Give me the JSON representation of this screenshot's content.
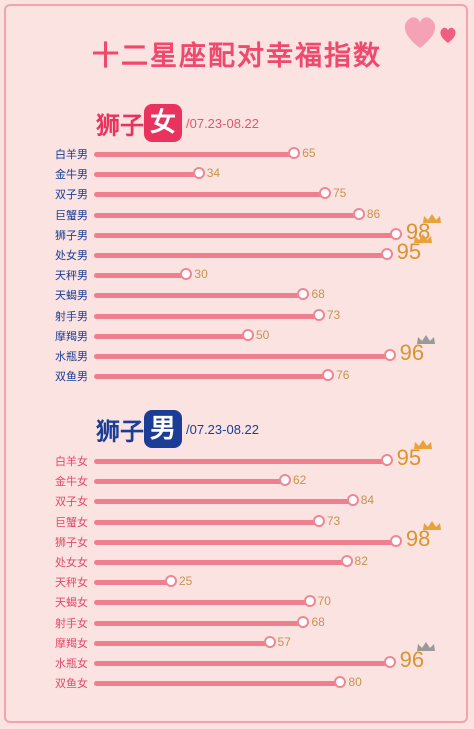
{
  "page": {
    "title": "十二星座配对幸福指数"
  },
  "colors": {
    "background": "#fbe3e1",
    "bar": "#ef7f8f",
    "title": "#ef4a6e",
    "value": "#c9924d",
    "crown_gold": "#e8a23a",
    "crown_silver": "#9a9a9a"
  },
  "sections": [
    {
      "sign": "狮子",
      "gender": "女",
      "date": "/07.23-08.22"
    },
    {
      "sign": "狮子",
      "gender": "男",
      "date": "/07.23-08.22"
    }
  ],
  "chart_data": [
    {
      "type": "bar",
      "orientation": "horizontal",
      "title": "狮子女 /07.23-08.22",
      "categories": [
        "白羊男",
        "金牛男",
        "双子男",
        "巨蟹男",
        "狮子男",
        "处女男",
        "天秤男",
        "天蝎男",
        "射手男",
        "摩羯男",
        "水瓶男",
        "双鱼男"
      ],
      "values": [
        65,
        34,
        75,
        86,
        98,
        95,
        30,
        68,
        73,
        50,
        96,
        76
      ],
      "highlight": [
        {
          "category": "狮子男",
          "crown": "gold"
        },
        {
          "category": "处女男",
          "crown": "gold"
        },
        {
          "category": "水瓶男",
          "crown": "silver"
        }
      ]
    },
    {
      "type": "bar",
      "orientation": "horizontal",
      "title": "狮子男 /07.23-08.22",
      "categories": [
        "白羊女",
        "金牛女",
        "双子女",
        "巨蟹女",
        "狮子女",
        "处女女",
        "天秤女",
        "天蝎女",
        "射手女",
        "摩羯女",
        "水瓶女",
        "双鱼女"
      ],
      "values": [
        95,
        62,
        84,
        73,
        98,
        82,
        25,
        70,
        68,
        57,
        96,
        80
      ],
      "highlight": [
        {
          "category": "白羊女",
          "crown": "gold"
        },
        {
          "category": "狮子女",
          "crown": "gold"
        },
        {
          "category": "水瓶女",
          "crown": "silver"
        }
      ]
    }
  ]
}
